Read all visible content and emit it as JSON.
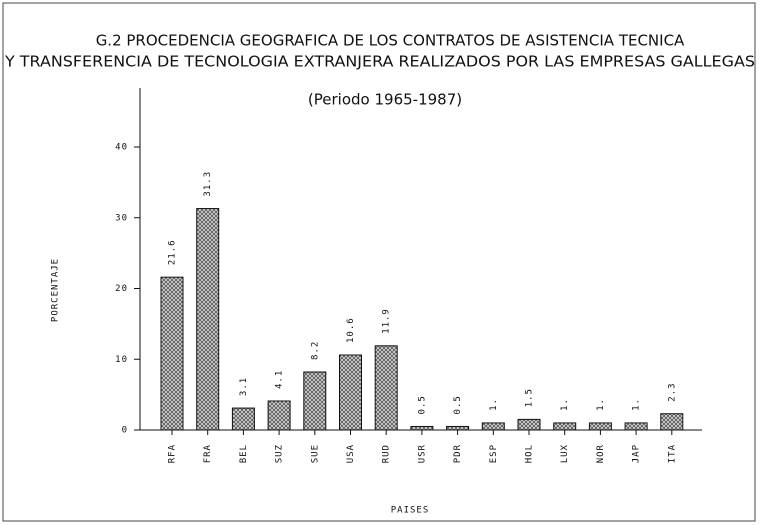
{
  "chart_data": {
    "type": "bar",
    "title": "G.2   PROCEDENCIA GEOGRAFICA DE LOS CONTRATOS DE ASISTENCIA TECNICA",
    "title2": "Y TRANSFERENCIA DE TECNOLOGIA EXTRANJERA REALIZADOS POR LAS EMPRESAS GALLEGAS",
    "subtitle": "(Periodo 1965-1987)",
    "xlabel": "PAISES",
    "ylabel": "PORCENTAJE",
    "categories": [
      "RFA",
      "FRA",
      "BEL",
      "SUZ",
      "SUE",
      "USA",
      "RUD",
      "USR",
      "PDR",
      "ESP",
      "HOL",
      "LUX",
      "NOR",
      "JAP",
      "ITA"
    ],
    "values": [
      21.6,
      31.3,
      3.1,
      4.1,
      8.2,
      10.6,
      11.9,
      0.5,
      0.5,
      1,
      1.5,
      1,
      1,
      1,
      2.3
    ],
    "value_labels": [
      "21.6",
      "31.3",
      "3.1",
      "4.1",
      "8.2",
      "10.6",
      "11.9",
      "0.5",
      "0.5",
      "1.",
      "1.5",
      "1.",
      "1.",
      "1.",
      "2.3"
    ],
    "color": "#555555",
    "ylim": [
      0,
      48
    ],
    "yticks": [
      0,
      10,
      20,
      30,
      40
    ],
    "grid": false
  }
}
